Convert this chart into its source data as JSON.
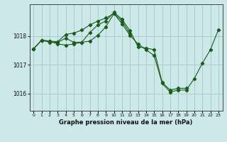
{
  "bg_color": "#cce8e8",
  "grid_color": "#aacccc",
  "line_color": "#1a5c1a",
  "xlabel": "Graphe pression niveau de la mer (hPa)",
  "xlim": [
    -0.5,
    23.5
  ],
  "ylim": [
    1015.4,
    1019.1
  ],
  "yticks": [
    1016,
    1017,
    1018
  ],
  "xticks": [
    0,
    1,
    2,
    3,
    4,
    5,
    6,
    7,
    8,
    9,
    10,
    11,
    12,
    13,
    14,
    15,
    16,
    17,
    18,
    19,
    20,
    21,
    22,
    23
  ],
  "series1": [
    1017.55,
    1017.85,
    1017.82,
    1017.8,
    1018.05,
    1018.1,
    1018.2,
    1018.38,
    1018.52,
    1018.62,
    1018.78,
    1018.42,
    1018.02,
    1017.72,
    1017.52,
    1017.32,
    1016.35,
    1016.05,
    1016.12,
    1016.12,
    1016.52,
    1017.05,
    1017.52,
    1018.22
  ],
  "series2": [
    1017.55,
    1017.85,
    1017.82,
    1017.72,
    1017.68,
    1017.72,
    1017.78,
    1018.12,
    1018.38,
    1018.52,
    1018.82,
    1018.58,
    1018.18,
    1017.62,
    1017.58,
    1017.52,
    1016.38,
    1016.12,
    1016.18,
    1016.18,
    null,
    null,
    null,
    null
  ],
  "series3": [
    1017.55,
    1017.85,
    1017.78,
    1017.78,
    1017.92,
    1017.78,
    1017.78,
    1017.82,
    1018.02,
    1018.32,
    1018.78,
    1018.52,
    1018.08,
    null,
    null,
    null,
    null,
    null,
    null,
    null,
    null,
    null,
    null,
    null
  ]
}
